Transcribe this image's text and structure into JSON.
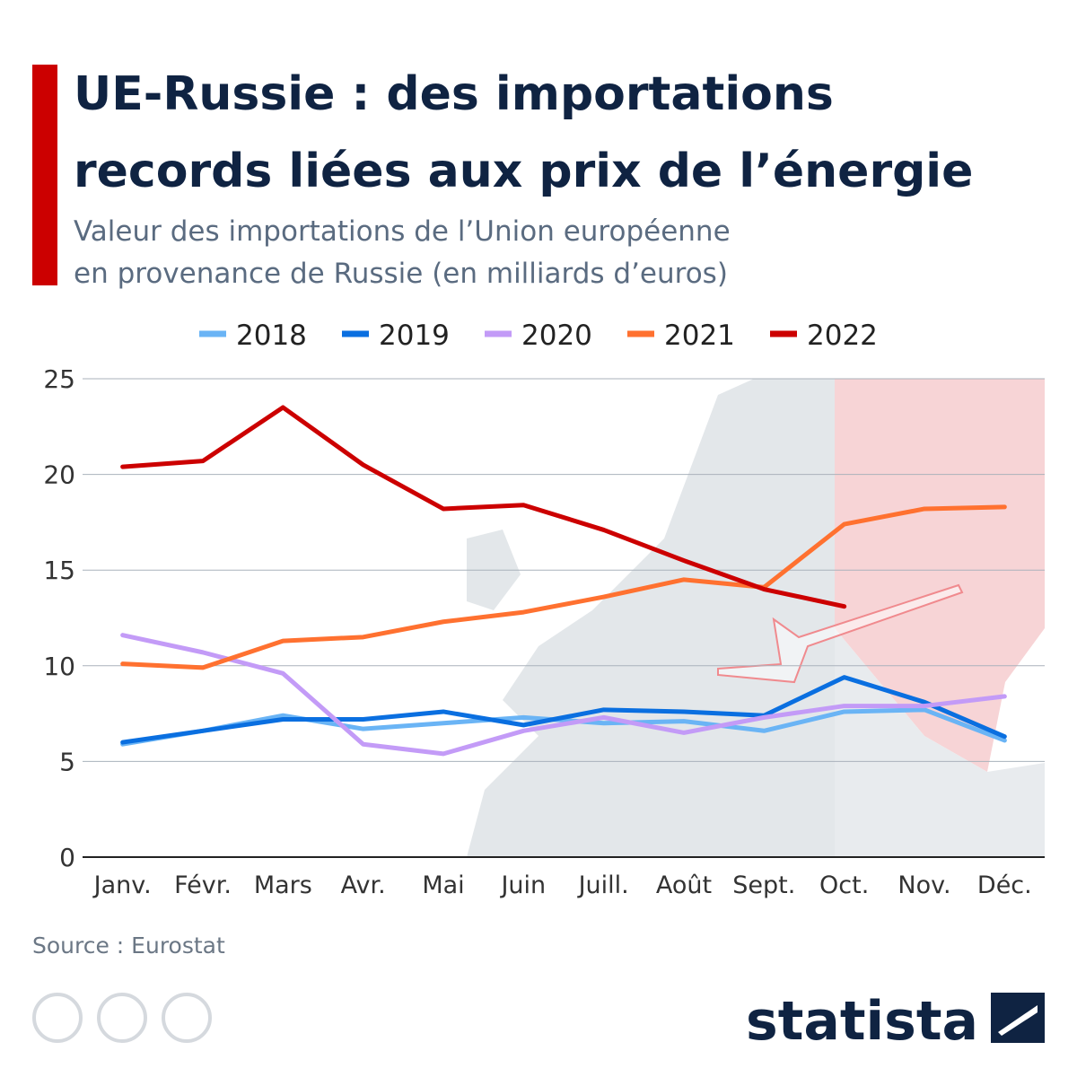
{
  "chart_data": {
    "type": "line",
    "title": [
      "UE-Russie : des importations",
      "records liées aux prix de l’énergie"
    ],
    "subtitle": [
      "Valeur des importations de l’Union européenne",
      "en provenance de Russie (en milliards d’euros)"
    ],
    "categories": [
      "Janv.",
      "Févr.",
      "Mars",
      "Avr.",
      "Mai",
      "Juin",
      "Juill.",
      "Août",
      "Sept.",
      "Oct.",
      "Nov.",
      "Déc."
    ],
    "series": [
      {
        "name": "2018",
        "color": "#6ab4f5",
        "values": [
          5.9,
          6.6,
          7.4,
          6.7,
          7.0,
          7.3,
          7.0,
          7.1,
          6.6,
          7.6,
          7.7,
          6.1
        ]
      },
      {
        "name": "2019",
        "color": "#0a6fe0",
        "values": [
          6.0,
          6.6,
          7.2,
          7.2,
          7.6,
          6.9,
          7.7,
          7.6,
          7.4,
          9.4,
          8.1,
          6.3
        ]
      },
      {
        "name": "2020",
        "color": "#c39bf7",
        "values": [
          11.6,
          10.7,
          9.6,
          5.9,
          5.4,
          6.6,
          7.3,
          6.5,
          7.3,
          7.9,
          7.9,
          8.4
        ]
      },
      {
        "name": "2021",
        "color": "#ff7130",
        "values": [
          10.1,
          9.9,
          11.3,
          11.5,
          12.3,
          12.8,
          13.6,
          14.5,
          14.1,
          17.4,
          18.2,
          18.3
        ]
      },
      {
        "name": "2022",
        "color": "#cc0000",
        "values": [
          20.4,
          20.7,
          23.5,
          20.5,
          18.2,
          18.4,
          17.1,
          15.5,
          14.0,
          13.1,
          null,
          null
        ]
      }
    ],
    "ylim": [
      0,
      25
    ],
    "yticks": [
      0,
      5,
      10,
      15,
      20,
      25
    ],
    "grid": true,
    "legend": "top",
    "source": "Source : Eurostat",
    "brand": "statista"
  }
}
